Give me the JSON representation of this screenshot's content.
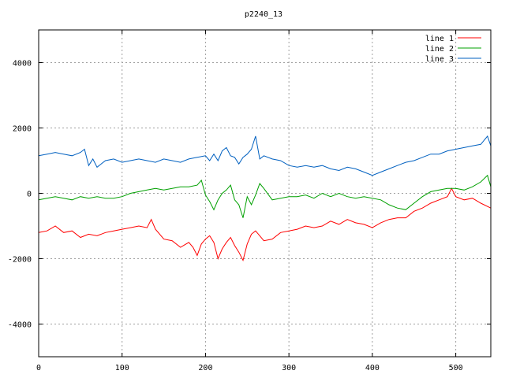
{
  "chart_data": {
    "type": "line",
    "title": "p2240_13",
    "xlabel": "",
    "ylabel": "",
    "xlim": [
      0,
      542
    ],
    "ylim": [
      -5000,
      5000
    ],
    "xticks": [
      0,
      100,
      200,
      300,
      400,
      500
    ],
    "yticks": [
      -4000,
      -2000,
      0,
      2000,
      4000
    ],
    "grid": true,
    "legend_position": "top-right",
    "series": [
      {
        "name": "line 1",
        "color": "#ff0000",
        "x": [
          0,
          10,
          20,
          30,
          40,
          50,
          60,
          70,
          80,
          90,
          100,
          110,
          120,
          130,
          135,
          140,
          150,
          160,
          170,
          180,
          185,
          190,
          195,
          200,
          205,
          210,
          215,
          220,
          225,
          230,
          235,
          240,
          245,
          250,
          255,
          260,
          265,
          270,
          280,
          290,
          300,
          310,
          320,
          330,
          340,
          350,
          360,
          370,
          380,
          390,
          400,
          410,
          420,
          430,
          440,
          450,
          460,
          470,
          480,
          490,
          495,
          500,
          510,
          520,
          530,
          542
        ],
        "y": [
          -1200,
          -1150,
          -1000,
          -1200,
          -1150,
          -1350,
          -1250,
          -1300,
          -1200,
          -1150,
          -1100,
          -1050,
          -1000,
          -1050,
          -800,
          -1100,
          -1400,
          -1450,
          -1650,
          -1500,
          -1650,
          -1900,
          -1550,
          -1400,
          -1300,
          -1500,
          -2000,
          -1700,
          -1500,
          -1350,
          -1600,
          -1800,
          -2050,
          -1550,
          -1250,
          -1150,
          -1300,
          -1450,
          -1400,
          -1200,
          -1150,
          -1100,
          -1000,
          -1050,
          -1000,
          -850,
          -950,
          -800,
          -900,
          -950,
          -1050,
          -900,
          -800,
          -750,
          -750,
          -550,
          -450,
          -300,
          -200,
          -100,
          150,
          -100,
          -200,
          -150,
          -300,
          -450
        ]
      },
      {
        "name": "line 2",
        "color": "#00a000",
        "x": [
          0,
          10,
          20,
          30,
          40,
          50,
          60,
          70,
          80,
          90,
          100,
          110,
          120,
          130,
          140,
          150,
          160,
          170,
          180,
          190,
          195,
          200,
          205,
          210,
          215,
          220,
          225,
          230,
          235,
          240,
          245,
          250,
          255,
          260,
          265,
          270,
          280,
          290,
          300,
          310,
          320,
          330,
          340,
          350,
          360,
          370,
          380,
          390,
          400,
          410,
          420,
          430,
          440,
          450,
          460,
          470,
          480,
          490,
          500,
          510,
          520,
          530,
          538,
          542
        ],
        "y": [
          -200,
          -150,
          -100,
          -150,
          -200,
          -100,
          -150,
          -100,
          -150,
          -150,
          -100,
          0,
          50,
          100,
          150,
          100,
          150,
          200,
          200,
          250,
          400,
          -50,
          -250,
          -500,
          -200,
          0,
          100,
          250,
          -200,
          -350,
          -750,
          -100,
          -350,
          -50,
          300,
          150,
          -200,
          -150,
          -100,
          -100,
          -50,
          -150,
          0,
          -100,
          0,
          -100,
          -150,
          -100,
          -150,
          -200,
          -350,
          -450,
          -500,
          -300,
          -100,
          50,
          100,
          150,
          150,
          100,
          200,
          350,
          550,
          200
        ]
      },
      {
        "name": "line 3",
        "color": "#0060c0",
        "x": [
          0,
          10,
          20,
          30,
          40,
          50,
          55,
          60,
          65,
          70,
          80,
          90,
          100,
          110,
          120,
          130,
          140,
          150,
          160,
          170,
          180,
          190,
          200,
          205,
          210,
          215,
          220,
          225,
          230,
          235,
          240,
          245,
          250,
          255,
          260,
          265,
          270,
          280,
          290,
          300,
          310,
          320,
          330,
          340,
          350,
          360,
          370,
          380,
          390,
          400,
          410,
          420,
          430,
          440,
          450,
          460,
          470,
          480,
          490,
          500,
          510,
          520,
          530,
          538,
          542
        ],
        "y": [
          1150,
          1200,
          1250,
          1200,
          1150,
          1250,
          1350,
          850,
          1050,
          800,
          1000,
          1050,
          950,
          1000,
          1050,
          1000,
          950,
          1050,
          1000,
          950,
          1050,
          1100,
          1150,
          1000,
          1200,
          1000,
          1300,
          1400,
          1150,
          1100,
          900,
          1100,
          1200,
          1350,
          1750,
          1050,
          1150,
          1050,
          1000,
          850,
          800,
          850,
          800,
          850,
          750,
          700,
          800,
          750,
          650,
          550,
          650,
          750,
          850,
          950,
          1000,
          1100,
          1200,
          1200,
          1300,
          1350,
          1400,
          1450,
          1500,
          1750,
          1450
        ]
      }
    ]
  }
}
